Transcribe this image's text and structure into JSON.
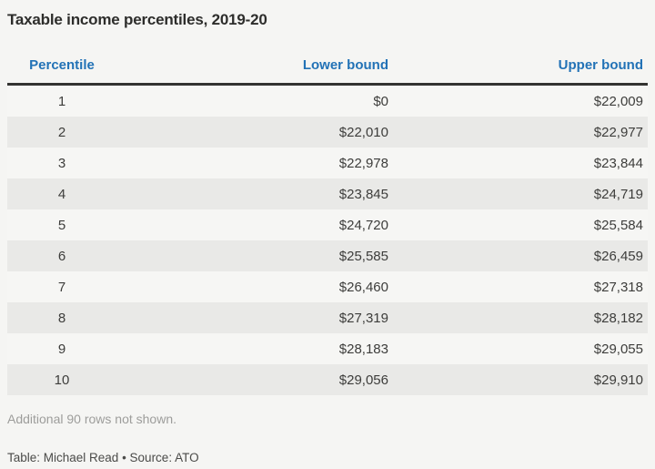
{
  "chart_data": {
    "type": "table",
    "title": "Taxable income percentiles, 2019-20",
    "columns": [
      "Percentile",
      "Lower bound",
      "Upper bound"
    ],
    "rows": [
      [
        "1",
        "$0",
        "$22,009"
      ],
      [
        "2",
        "$22,010",
        "$22,977"
      ],
      [
        "3",
        "$22,978",
        "$23,844"
      ],
      [
        "4",
        "$23,845",
        "$24,719"
      ],
      [
        "5",
        "$24,720",
        "$25,584"
      ],
      [
        "6",
        "$25,585",
        "$26,459"
      ],
      [
        "7",
        "$26,460",
        "$27,318"
      ],
      [
        "8",
        "$27,319",
        "$28,182"
      ],
      [
        "9",
        "$28,183",
        "$29,055"
      ],
      [
        "10",
        "$29,056",
        "$29,910"
      ]
    ],
    "note": "Additional 90 rows not shown.",
    "credit": "Table: Michael Read • Source: ATO",
    "layout": {
      "column_alignments": [
        "center",
        "right",
        "right"
      ],
      "rows_shown": 10,
      "rows_hidden": 90
    },
    "colors": {
      "header_text": "#2272b6",
      "title_text": "#2d2d2b",
      "cell_text": "#3d3d3b",
      "stripe_even": "#e9e9e7",
      "stripe_odd": "#f6f6f4",
      "page_background": "#f5f5f3",
      "header_rule": "#333331",
      "note_text": "#9d9d9b",
      "credit_text": "#4b4b49"
    }
  }
}
